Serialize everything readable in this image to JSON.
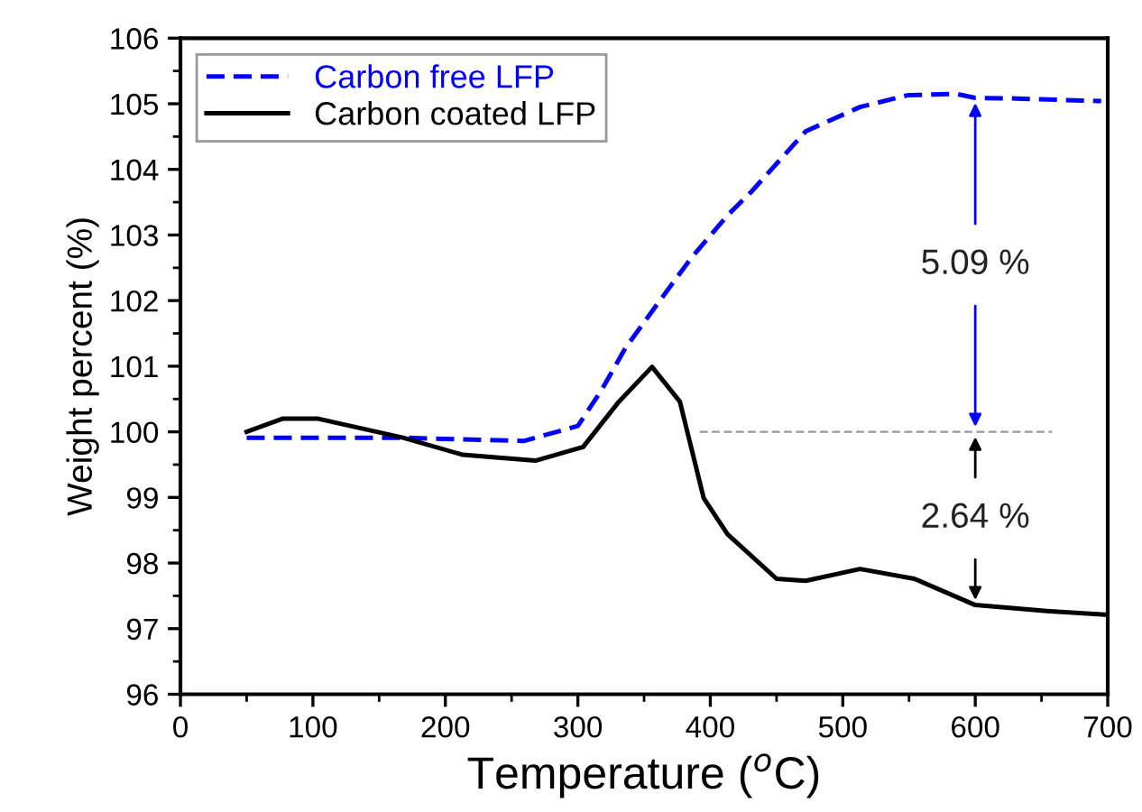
{
  "chart_data": {
    "type": "line",
    "xlabel": "Temperature ($^{o}$C)",
    "ylabel": "Weight percent (%)",
    "xlim": [
      0,
      700
    ],
    "xticks": [
      0,
      100,
      200,
      300,
      400,
      500,
      600,
      700
    ],
    "ylim": [
      96,
      106
    ],
    "yticks": [
      96,
      97,
      98,
      99,
      100,
      101,
      102,
      103,
      104,
      105,
      106
    ],
    "legend": "top left",
    "grid": false,
    "series": [
      {
        "name": "Carbon free LFP",
        "color": "#0000ff",
        "line_style": "dashed",
        "x": [
          50,
          168,
          259,
          300,
          318,
          336,
          359,
          386,
          413,
          431,
          472,
          513,
          549,
          586,
          600,
          631,
          695
        ],
        "values": [
          99.91,
          99.91,
          99.86,
          100.09,
          100.64,
          101.28,
          101.92,
          102.66,
          103.3,
          103.66,
          104.58,
          104.95,
          105.13,
          105.15,
          105.09,
          105.08,
          105.04
        ]
      },
      {
        "name": "Carbon coated LFP",
        "color": "#000000",
        "line_style": "solid",
        "x": [
          50,
          77,
          104,
          168,
          213,
          268,
          304,
          331,
          356,
          377,
          395,
          413,
          450,
          472,
          513,
          554,
          600,
          654,
          700
        ],
        "values": [
          100.0,
          100.2,
          100.2,
          99.91,
          99.65,
          99.56,
          99.77,
          100.46,
          100.99,
          100.46,
          98.99,
          98.44,
          97.76,
          97.73,
          97.91,
          97.76,
          97.36,
          97.27,
          97.21
        ]
      }
    ],
    "ref_lines": [
      {
        "axis": "y",
        "value": 100,
        "color": "#999999",
        "line_style": "dashed"
      }
    ],
    "annotations": [
      {
        "text": "5.09 %",
        "x": 600,
        "y": 105.09
      },
      {
        "text": "2.64 %",
        "x": 600,
        "y": 97.36
      }
    ]
  }
}
